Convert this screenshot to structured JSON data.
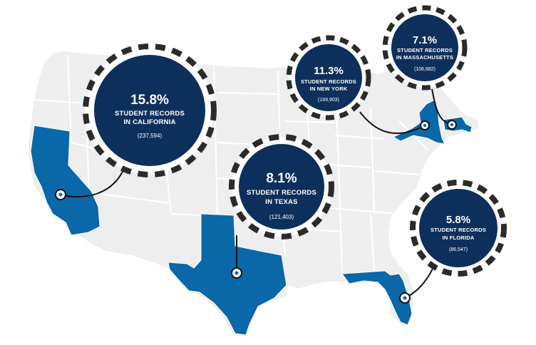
{
  "colors": {
    "land": "#eeeeee",
    "border": "#ffffff",
    "highlight": "#0a67a8",
    "bubble": "#0d2f5c",
    "dash": "#2b2b2b",
    "connector": "#111111"
  },
  "callouts": [
    {
      "state": "California",
      "percent": "15.8%",
      "line1": "STUDENT RECORDS",
      "line2": "IN CALIFORNIA",
      "count": "(237,594)"
    },
    {
      "state": "Texas",
      "percent": "8.1%",
      "line1": "STUDENT RECORDS",
      "line2": "IN TEXAS",
      "count": "(121,403)"
    },
    {
      "state": "New York",
      "percent": "11.3%",
      "line1": "STUDENT RECORDS",
      "line2": "IN NEW YORK",
      "count": "(169,903)"
    },
    {
      "state": "Massachusetts",
      "percent": "7.1%",
      "line1": "STUDENT RECORDS",
      "line2": "IN MASSACHUSETTS",
      "count": "(106,682)"
    },
    {
      "state": "Florida",
      "percent": "5.8%",
      "line1": "STUDENT RECORDS",
      "line2": "IN FLORIDA",
      "count": "(86,547)"
    }
  ]
}
